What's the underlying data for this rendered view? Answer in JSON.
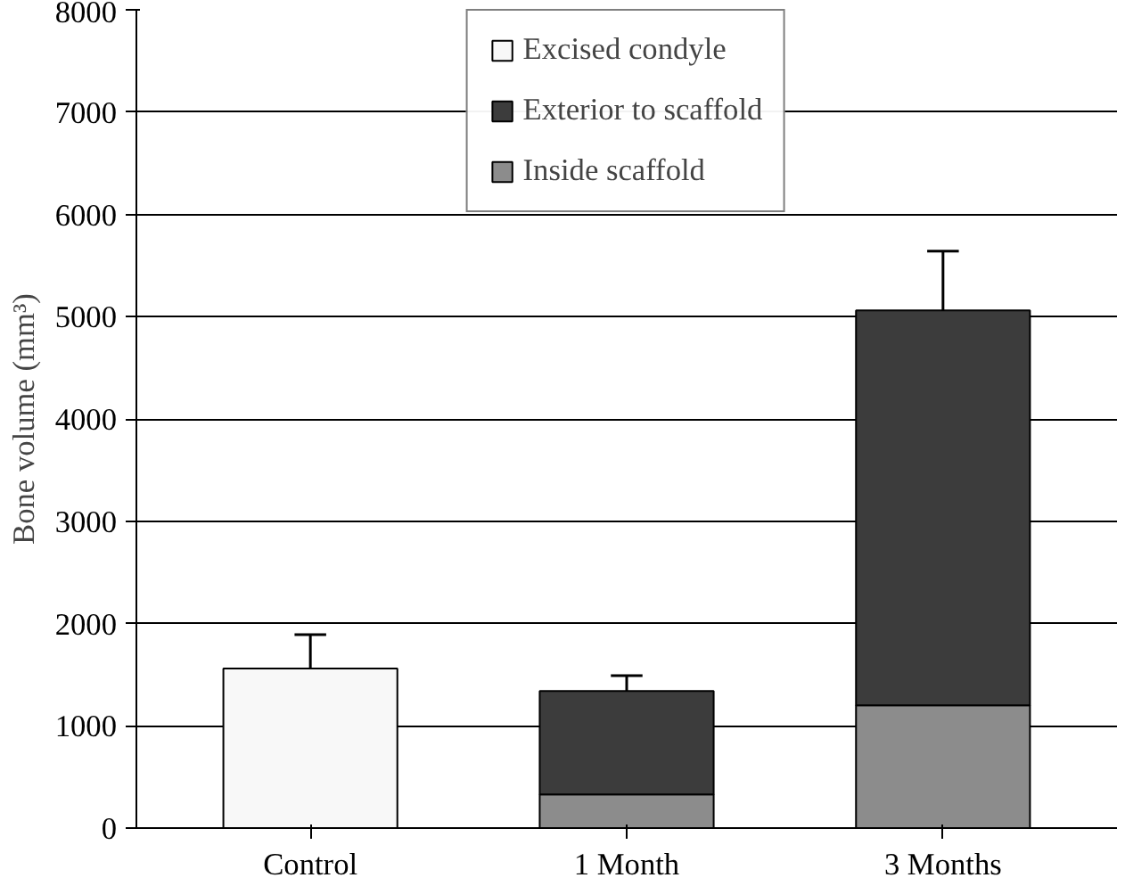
{
  "chart_data": {
    "type": "bar",
    "stacked": true,
    "ylabel": "Bone volume (mm³)",
    "categories": [
      "Control",
      "1 Month",
      "3 Months"
    ],
    "series": [
      {
        "name": "Inside scaffold",
        "color": "#8c8c8c",
        "values": [
          null,
          330,
          1200
        ]
      },
      {
        "name": "Exterior to scaffold",
        "color": "#3c3c3c",
        "values": [
          null,
          1010,
          3860
        ],
        "errors": [
          null,
          [
            1340,
            1490
          ],
          [
            5060,
            5640
          ]
        ]
      },
      {
        "name": "Excised condyle",
        "color": "#f8f8f8",
        "values": [
          1560,
          null,
          null
        ],
        "errors": [
          [
            1560,
            1890
          ],
          null,
          null
        ]
      }
    ],
    "ylim": [
      0,
      8000
    ],
    "yticks": [
      0,
      1000,
      2000,
      3000,
      4000,
      5000,
      6000,
      7000,
      8000
    ],
    "grid": "y",
    "legend": "top"
  }
}
